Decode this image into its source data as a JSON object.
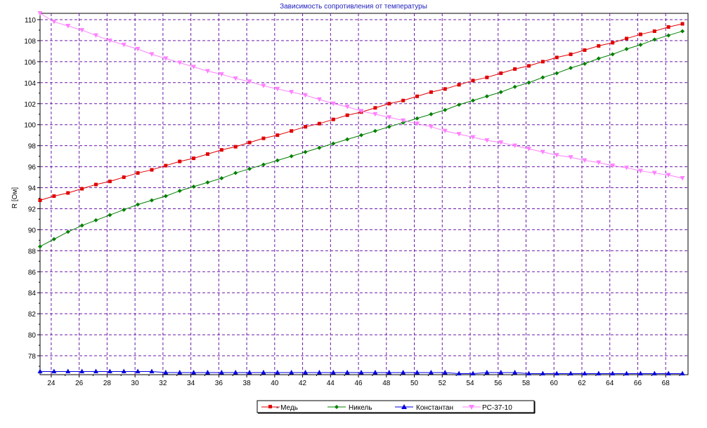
{
  "chart_data": {
    "type": "line",
    "title": "Зависимость сопротивления от температуры",
    "xlabel": "",
    "ylabel": "R [Ом]",
    "xlim": [
      23.2,
      69.6
    ],
    "ylim": [
      76.2,
      110.6
    ],
    "x_ticks": [
      "24",
      "26",
      "28",
      "30",
      "32",
      "34",
      "36",
      "38",
      "40",
      "42",
      "44",
      "46",
      "48",
      "50",
      "52",
      "54",
      "56",
      "58",
      "60",
      "62",
      "64",
      "66",
      "68"
    ],
    "y_ticks": [
      "78",
      "80",
      "82",
      "84",
      "86",
      "88",
      "90",
      "92",
      "94",
      "96",
      "98",
      "100",
      "102",
      "104",
      "106",
      "108",
      "110"
    ],
    "grid": true,
    "legend_position": "bottom-center",
    "x": [
      23.2,
      24.2,
      25.2,
      26.2,
      27.2,
      28.2,
      29.2,
      30.2,
      31.2,
      32.2,
      33.2,
      34.2,
      35.2,
      36.2,
      37.2,
      38.2,
      39.2,
      40.2,
      41.2,
      42.2,
      43.2,
      44.2,
      45.2,
      46.2,
      47.2,
      48.2,
      49.2,
      50.2,
      51.2,
      52.2,
      53.2,
      54.2,
      55.2,
      56.2,
      57.2,
      58.2,
      59.2,
      60.2,
      61.2,
      62.2,
      63.2,
      64.2,
      65.2,
      66.2,
      67.2,
      68.2,
      69.2
    ],
    "series": [
      {
        "name": "Медь",
        "color": "#e00000",
        "marker": "square",
        "values": [
          92.8,
          93.2,
          93.5,
          93.9,
          94.3,
          94.6,
          95.0,
          95.4,
          95.7,
          96.1,
          96.5,
          96.8,
          97.2,
          97.6,
          97.9,
          98.3,
          98.7,
          99.0,
          99.4,
          99.8,
          100.1,
          100.5,
          100.9,
          101.2,
          101.6,
          102.0,
          102.3,
          102.7,
          103.1,
          103.4,
          103.8,
          104.2,
          104.5,
          104.9,
          105.3,
          105.6,
          106.0,
          106.4,
          106.7,
          107.1,
          107.5,
          107.8,
          108.2,
          108.6,
          108.9,
          109.3,
          109.6
        ]
      },
      {
        "name": "Никель",
        "color": "#008000",
        "marker": "diamond",
        "values": [
          88.4,
          89.1,
          89.8,
          90.4,
          90.9,
          91.4,
          91.9,
          92.4,
          92.8,
          93.2,
          93.7,
          94.1,
          94.5,
          94.9,
          95.4,
          95.8,
          96.2,
          96.6,
          97.0,
          97.4,
          97.8,
          98.2,
          98.6,
          99.0,
          99.4,
          99.8,
          100.2,
          100.6,
          101.0,
          101.4,
          101.9,
          102.3,
          102.7,
          103.1,
          103.6,
          104.0,
          104.5,
          104.9,
          105.4,
          105.8,
          106.3,
          106.7,
          107.2,
          107.6,
          108.1,
          108.5,
          108.9
        ]
      },
      {
        "name": "Константан",
        "color": "#0000e0",
        "marker": "triangle-up",
        "values": [
          76.5,
          76.5,
          76.5,
          76.5,
          76.5,
          76.5,
          76.5,
          76.5,
          76.5,
          76.4,
          76.4,
          76.4,
          76.4,
          76.4,
          76.4,
          76.4,
          76.4,
          76.4,
          76.4,
          76.4,
          76.4,
          76.4,
          76.4,
          76.4,
          76.4,
          76.4,
          76.4,
          76.4,
          76.4,
          76.4,
          76.3,
          76.3,
          76.4,
          76.4,
          76.4,
          76.3,
          76.3,
          76.3,
          76.3,
          76.3,
          76.3,
          76.3,
          76.3,
          76.3,
          76.3,
          76.3,
          76.3
        ]
      },
      {
        "name": "PC-37-10",
        "color": "#ff80ff",
        "marker": "triangle-down",
        "values": [
          110.6,
          109.8,
          109.4,
          109.0,
          108.5,
          108.0,
          107.6,
          107.2,
          106.7,
          106.3,
          105.9,
          105.5,
          105.1,
          104.8,
          104.4,
          104.1,
          103.7,
          103.4,
          103.1,
          102.8,
          102.4,
          102.0,
          101.7,
          101.3,
          101.0,
          100.7,
          100.4,
          100.1,
          99.8,
          99.4,
          99.1,
          98.8,
          98.5,
          98.3,
          98.0,
          97.7,
          97.4,
          97.1,
          96.9,
          96.6,
          96.4,
          96.1,
          95.9,
          95.6,
          95.4,
          95.2,
          94.9
        ]
      }
    ]
  },
  "legend": {
    "items": [
      {
        "label": "- Медь"
      },
      {
        "label": "Никель"
      },
      {
        "label": "Константан"
      },
      {
        "label": "PC-37-10"
      }
    ]
  }
}
